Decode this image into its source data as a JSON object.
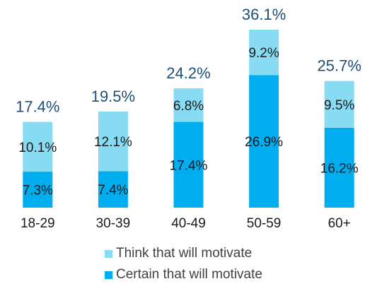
{
  "colors": {
    "think": "#87DCF3",
    "certain": "#00AEEF",
    "total_label": "#1F4E79",
    "text": "#1a1a1a"
  },
  "chart_data": {
    "type": "bar",
    "stacked": true,
    "categories": [
      "18-29",
      "30-39",
      "40-49",
      "50-59",
      "60+"
    ],
    "series": [
      {
        "name": "Certain that will motivate",
        "values": [
          7.3,
          7.4,
          17.4,
          26.9,
          16.2
        ],
        "labels": [
          "7.3%",
          "7.4%",
          "17.4%",
          "26.9%",
          "16.2%"
        ]
      },
      {
        "name": "Think that will motivate",
        "values": [
          10.1,
          12.1,
          6.8,
          9.2,
          9.5
        ],
        "labels": [
          "10.1%",
          "12.1%",
          "6.8%",
          "9.2%",
          "9.5%"
        ]
      }
    ],
    "totals": [
      17.4,
      19.5,
      24.2,
      36.1,
      25.7
    ],
    "total_labels": [
      "17.4%",
      "19.5%",
      "24.2%",
      "36.1%",
      "25.7%"
    ],
    "ylim": [
      0,
      36.1
    ],
    "grid": false,
    "legend_position": "bottom"
  },
  "legend": {
    "items": [
      {
        "label": "Think that will motivate"
      },
      {
        "label": "Certain that will motivate"
      }
    ]
  }
}
